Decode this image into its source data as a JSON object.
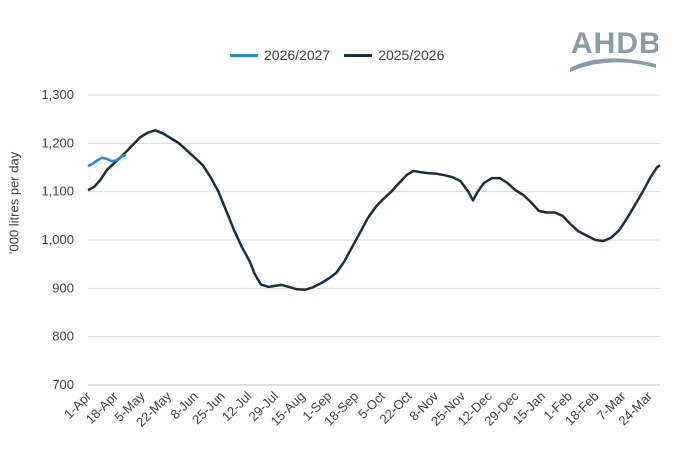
{
  "brand": {
    "logo_text": "AHDB",
    "logo_icon": "ahdb-wave-logo",
    "logo_color": "#8a9aa6"
  },
  "chart_data": {
    "type": "line",
    "title": "",
    "xlabel": "",
    "ylabel": "'000 litres per day",
    "ylim": [
      700,
      1300
    ],
    "yticks": [
      700,
      800,
      900,
      1000,
      1100,
      1200,
      1300
    ],
    "ytick_labels": [
      "700",
      "800",
      "900",
      "1,000",
      "1,100",
      "1,200",
      "1,300"
    ],
    "xlim_days": [
      0,
      364
    ],
    "xticks": [
      {
        "label": "1-Apr",
        "day": 0
      },
      {
        "label": "18-Apr",
        "day": 17
      },
      {
        "label": "5-May",
        "day": 34
      },
      {
        "label": "22-May",
        "day": 51
      },
      {
        "label": "8-Jun",
        "day": 68
      },
      {
        "label": "25-Jun",
        "day": 85
      },
      {
        "label": "12-Jul",
        "day": 102
      },
      {
        "label": "29-Jul",
        "day": 119
      },
      {
        "label": "15-Aug",
        "day": 136
      },
      {
        "label": "1-Sep",
        "day": 153
      },
      {
        "label": "18-Sep",
        "day": 170
      },
      {
        "label": "5-Oct",
        "day": 187
      },
      {
        "label": "22-Oct",
        "day": 204
      },
      {
        "label": "8-Nov",
        "day": 221
      },
      {
        "label": "25-Nov",
        "day": 238
      },
      {
        "label": "12-Dec",
        "day": 255
      },
      {
        "label": "29-Dec",
        "day": 272
      },
      {
        "label": "15-Jan",
        "day": 289
      },
      {
        "label": "1-Feb",
        "day": 306
      },
      {
        "label": "18-Feb",
        "day": 323
      },
      {
        "label": "7-Mar",
        "day": 340
      },
      {
        "label": "24-Mar",
        "day": 357
      }
    ],
    "grid": true,
    "legend_position": "top",
    "series": [
      {
        "name": "2026/2027",
        "color": "#1e90c8",
        "points": [
          [
            0,
            1153
          ],
          [
            3,
            1158
          ],
          [
            6,
            1165
          ],
          [
            9,
            1170
          ],
          [
            12,
            1168
          ],
          [
            15,
            1163
          ],
          [
            18,
            1165
          ],
          [
            21,
            1172
          ],
          [
            24,
            1176
          ]
        ]
      },
      {
        "name": "2025/2026",
        "color": "#1a2e3f",
        "points": [
          [
            0,
            1103
          ],
          [
            4,
            1110
          ],
          [
            8,
            1125
          ],
          [
            12,
            1145
          ],
          [
            17,
            1160
          ],
          [
            22,
            1175
          ],
          [
            28,
            1195
          ],
          [
            33,
            1212
          ],
          [
            38,
            1222
          ],
          [
            43,
            1227
          ],
          [
            48,
            1220
          ],
          [
            53,
            1210
          ],
          [
            58,
            1200
          ],
          [
            63,
            1185
          ],
          [
            68,
            1170
          ],
          [
            73,
            1155
          ],
          [
            78,
            1130
          ],
          [
            83,
            1100
          ],
          [
            88,
            1060
          ],
          [
            93,
            1020
          ],
          [
            98,
            985
          ],
          [
            103,
            955
          ],
          [
            106,
            930
          ],
          [
            110,
            908
          ],
          [
            115,
            903
          ],
          [
            119,
            905
          ],
          [
            123,
            907
          ],
          [
            128,
            903
          ],
          [
            133,
            898
          ],
          [
            138,
            897
          ],
          [
            143,
            902
          ],
          [
            148,
            910
          ],
          [
            153,
            920
          ],
          [
            158,
            932
          ],
          [
            163,
            955
          ],
          [
            168,
            985
          ],
          [
            173,
            1015
          ],
          [
            178,
            1045
          ],
          [
            183,
            1068
          ],
          [
            188,
            1085
          ],
          [
            193,
            1100
          ],
          [
            198,
            1118
          ],
          [
            203,
            1135
          ],
          [
            207,
            1143
          ],
          [
            212,
            1140
          ],
          [
            217,
            1138
          ],
          [
            222,
            1137
          ],
          [
            227,
            1134
          ],
          [
            232,
            1130
          ],
          [
            237,
            1122
          ],
          [
            242,
            1100
          ],
          [
            245,
            1082
          ],
          [
            248,
            1100
          ],
          [
            252,
            1118
          ],
          [
            257,
            1128
          ],
          [
            262,
            1128
          ],
          [
            267,
            1118
          ],
          [
            272,
            1103
          ],
          [
            277,
            1093
          ],
          [
            282,
            1078
          ],
          [
            287,
            1060
          ],
          [
            292,
            1057
          ],
          [
            297,
            1057
          ],
          [
            302,
            1050
          ],
          [
            307,
            1033
          ],
          [
            312,
            1018
          ],
          [
            318,
            1008
          ],
          [
            323,
            1000
          ],
          [
            328,
            998
          ],
          [
            333,
            1005
          ],
          [
            338,
            1020
          ],
          [
            343,
            1045
          ],
          [
            348,
            1072
          ],
          [
            353,
            1100
          ],
          [
            358,
            1130
          ],
          [
            362,
            1150
          ],
          [
            364,
            1155
          ]
        ]
      }
    ]
  }
}
